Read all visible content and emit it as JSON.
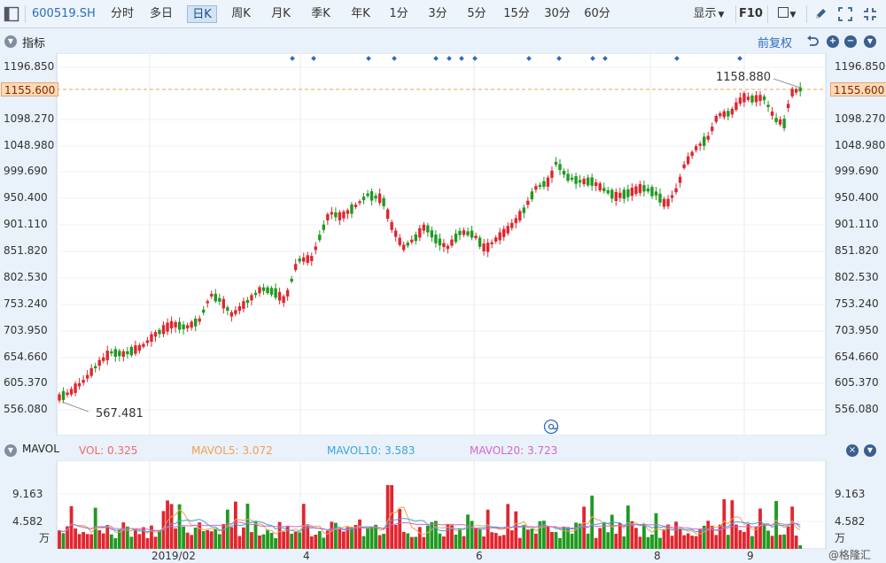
{
  "toolbar": {
    "symbol": "600519.SH",
    "periods": [
      "分时",
      "多日",
      "日K",
      "周K",
      "月K",
      "季K",
      "年K",
      "1分",
      "3分",
      "5分",
      "15分",
      "30分",
      "60分"
    ],
    "active_period": "日K",
    "display_label": "显示",
    "f10_label": "F10"
  },
  "indicator_panel": {
    "title": "指标",
    "adjust_label": "前复权"
  },
  "price_axis": {
    "ticks": [
      "1196.850",
      "1098.270",
      "1048.980",
      "999.690",
      "950.400",
      "901.110",
      "851.820",
      "802.530",
      "753.240",
      "703.950",
      "654.660",
      "605.370",
      "556.080"
    ],
    "current_price": "1155.600",
    "high_label": "1158.880",
    "low_label": "567.481"
  },
  "volume_panel": {
    "title": "MAVOL",
    "vol_label": "VOL:",
    "vol_value": "0.325",
    "ma5_label": "MAVOL5:",
    "ma5_value": "3.072",
    "ma10_label": "MAVOL10:",
    "ma10_value": "3.583",
    "ma20_label": "MAVOL20:",
    "ma20_value": "3.723",
    "axis_ticks": [
      "9.163",
      "4.582",
      "万"
    ]
  },
  "date_axis": {
    "labels": [
      "2019/02",
      "4",
      "6",
      "8",
      "9"
    ]
  },
  "watermark": "@格隆汇",
  "colors": {
    "up": "#e0262f",
    "down": "#1f9a1f",
    "ma5": "#f0a050",
    "ma10": "#3aa6d6",
    "ma20": "#d866c8",
    "vol_label": "#ef6a6a",
    "price_line": "#f0a050"
  }
}
